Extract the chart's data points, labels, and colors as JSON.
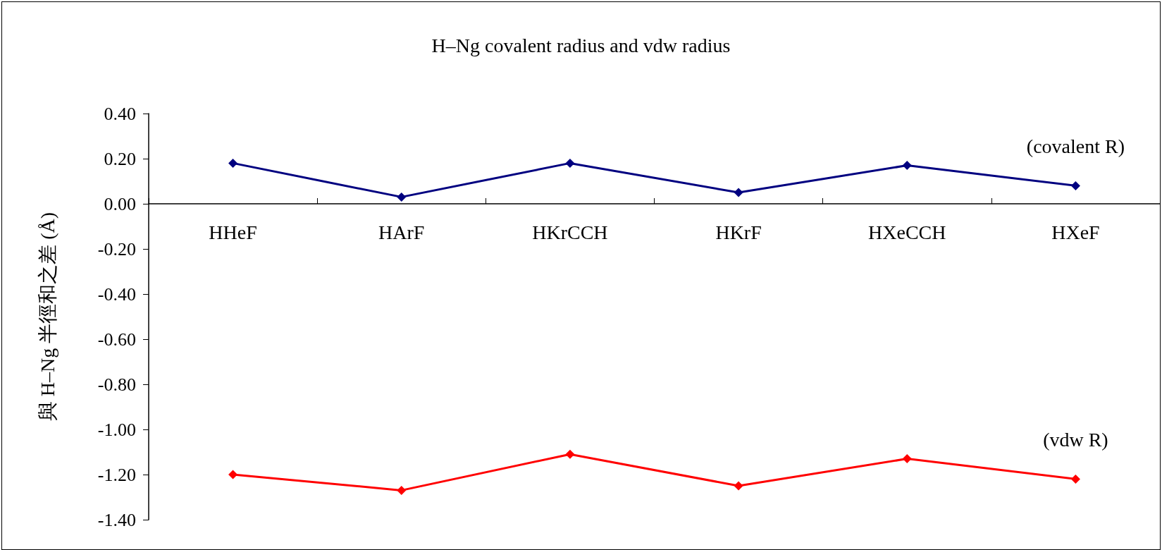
{
  "chart_data": {
    "type": "line",
    "title": "H–Ng covalent radius and vdw radius",
    "ylabel": "與 H–Ng 半徑和之差 (Å)",
    "categories": [
      "HHeF",
      "HArF",
      "HKrCCH",
      "HKrF",
      "HXeCCH",
      "HXeF"
    ],
    "series": [
      {
        "name": "(covalent R)",
        "color": "#000080",
        "values": [
          0.18,
          0.03,
          0.18,
          0.05,
          0.17,
          0.08
        ]
      },
      {
        "name": "(vdw R)",
        "color": "#ff0000",
        "values": [
          -1.2,
          -1.27,
          -1.11,
          -1.25,
          -1.13,
          -1.22
        ]
      }
    ],
    "ylim": [
      -1.4,
      0.4
    ],
    "yticks": [
      {
        "value": 0.4,
        "label": "0.40"
      },
      {
        "value": 0.2,
        "label": "0.20"
      },
      {
        "value": 0,
        "label": "0.00"
      },
      {
        "value": -0.2,
        "label": "-0.20"
      },
      {
        "value": -0.4,
        "label": "-0.40"
      },
      {
        "value": -0.6,
        "label": "-0.60"
      },
      {
        "value": -0.8,
        "label": "-0.80"
      },
      {
        "value": -1.0,
        "label": "-1.00"
      },
      {
        "value": -1.2,
        "label": "-1.20"
      },
      {
        "value": -1.4,
        "label": "-1.40"
      }
    ],
    "marker": "diamond",
    "line_style": "solid",
    "legend": false
  }
}
